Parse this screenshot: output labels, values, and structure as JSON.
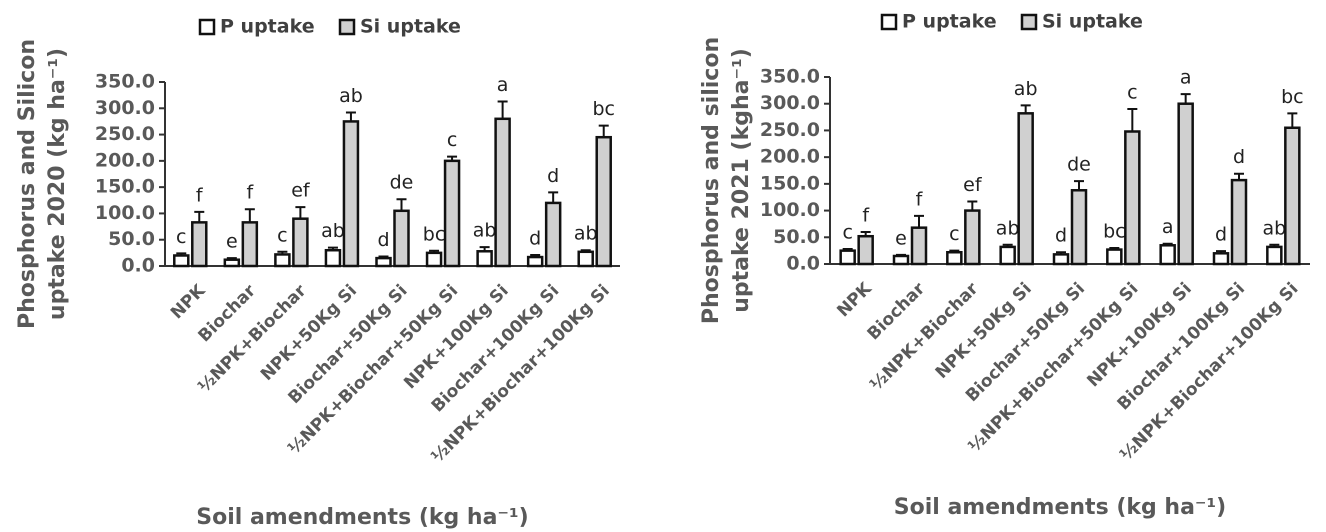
{
  "chart_data": [
    {
      "type": "bar",
      "ylabel": [
        "Phosphorus and Silicon",
        "uptake 2020 (kg ha⁻¹)"
      ],
      "xlabel": "Soil amendments (kg ha⁻¹)",
      "categories": [
        "NPK",
        "Biochar",
        "½NPK+Biochar",
        "NPK+50Kg Si",
        "Biochar+50Kg Si",
        "½NPK+Biochar+50Kg Si",
        "NPK+100Kg Si",
        "Biochar+100Kg Si",
        "½NPK+Biochar+100Kg Si"
      ],
      "series": [
        {
          "name": "P uptake",
          "color": "#ffffff",
          "values": [
            20,
            12,
            22,
            30,
            15,
            25,
            28,
            17,
            27
          ],
          "errors": [
            4,
            3,
            5,
            5,
            3,
            4,
            8,
            4,
            3
          ],
          "letters": [
            "c",
            "e",
            "c",
            "ab",
            "d",
            "bc",
            "ab",
            "d",
            "ab"
          ]
        },
        {
          "name": "Si uptake",
          "color": "#d0d0d0",
          "values": [
            83,
            83,
            90,
            275,
            105,
            200,
            280,
            120,
            245
          ],
          "errors": [
            20,
            25,
            22,
            17,
            22,
            8,
            33,
            20,
            22
          ],
          "letters": [
            "f",
            "f",
            "ef",
            "ab",
            "de",
            "c",
            "a",
            "d",
            "bc"
          ]
        }
      ],
      "ylim": [
        0,
        350
      ],
      "yticks": [
        {
          "value": 0,
          "label": "0.0"
        },
        {
          "value": 50,
          "label": "50.0"
        },
        {
          "value": 100,
          "label": "100.0"
        },
        {
          "value": 150,
          "label": "150.0"
        },
        {
          "value": 200,
          "label": "200.0"
        },
        {
          "value": 250,
          "label": "250.0"
        },
        {
          "value": 300,
          "label": "300.0"
        },
        {
          "value": 350,
          "label": "350.0"
        }
      ]
    },
    {
      "type": "bar",
      "ylabel": [
        "Phosphorus and silicon",
        "uptake 2021 (kgha⁻¹)"
      ],
      "xlabel": "Soil amendments (kg ha⁻¹)",
      "categories": [
        "NPK",
        "Biochar",
        "½NPK+Biochar",
        "NPK+50Kg Si",
        "Biochar+50Kg Si",
        "½NPK+Biochar+50Kg Si",
        "NPK+100Kg Si",
        "Biochar+100Kg Si",
        "½NPK+Biochar+100Kg Si"
      ],
      "series": [
        {
          "name": "P uptake",
          "color": "#ffffff",
          "values": [
            25,
            15,
            22,
            32,
            18,
            27,
            35,
            20,
            32
          ],
          "errors": [
            3,
            2,
            3,
            4,
            4,
            3,
            3,
            4,
            4
          ],
          "letters": [
            "c",
            "e",
            "c",
            "ab",
            "d",
            "bc",
            "a",
            "d",
            "ab"
          ]
        },
        {
          "name": "Si uptake",
          "color": "#d0d0d0",
          "values": [
            52,
            68,
            100,
            282,
            138,
            248,
            300,
            157,
            255
          ],
          "errors": [
            8,
            22,
            17,
            15,
            17,
            42,
            18,
            12,
            27
          ],
          "letters": [
            "f",
            "f",
            "ef",
            "ab",
            "de",
            "c",
            "a",
            "d",
            "bc"
          ]
        }
      ],
      "ylim": [
        0,
        350
      ],
      "yticks": [
        {
          "value": 0,
          "label": "0.0"
        },
        {
          "value": 50,
          "label": "50.0"
        },
        {
          "value": 100,
          "label": "100.0"
        },
        {
          "value": 150,
          "label": "150.0"
        },
        {
          "value": 200,
          "label": "200.0"
        },
        {
          "value": 250,
          "label": "250.0"
        },
        {
          "value": 300,
          "label": "300.0"
        },
        {
          "value": 350,
          "label": "350.0"
        }
      ]
    }
  ]
}
